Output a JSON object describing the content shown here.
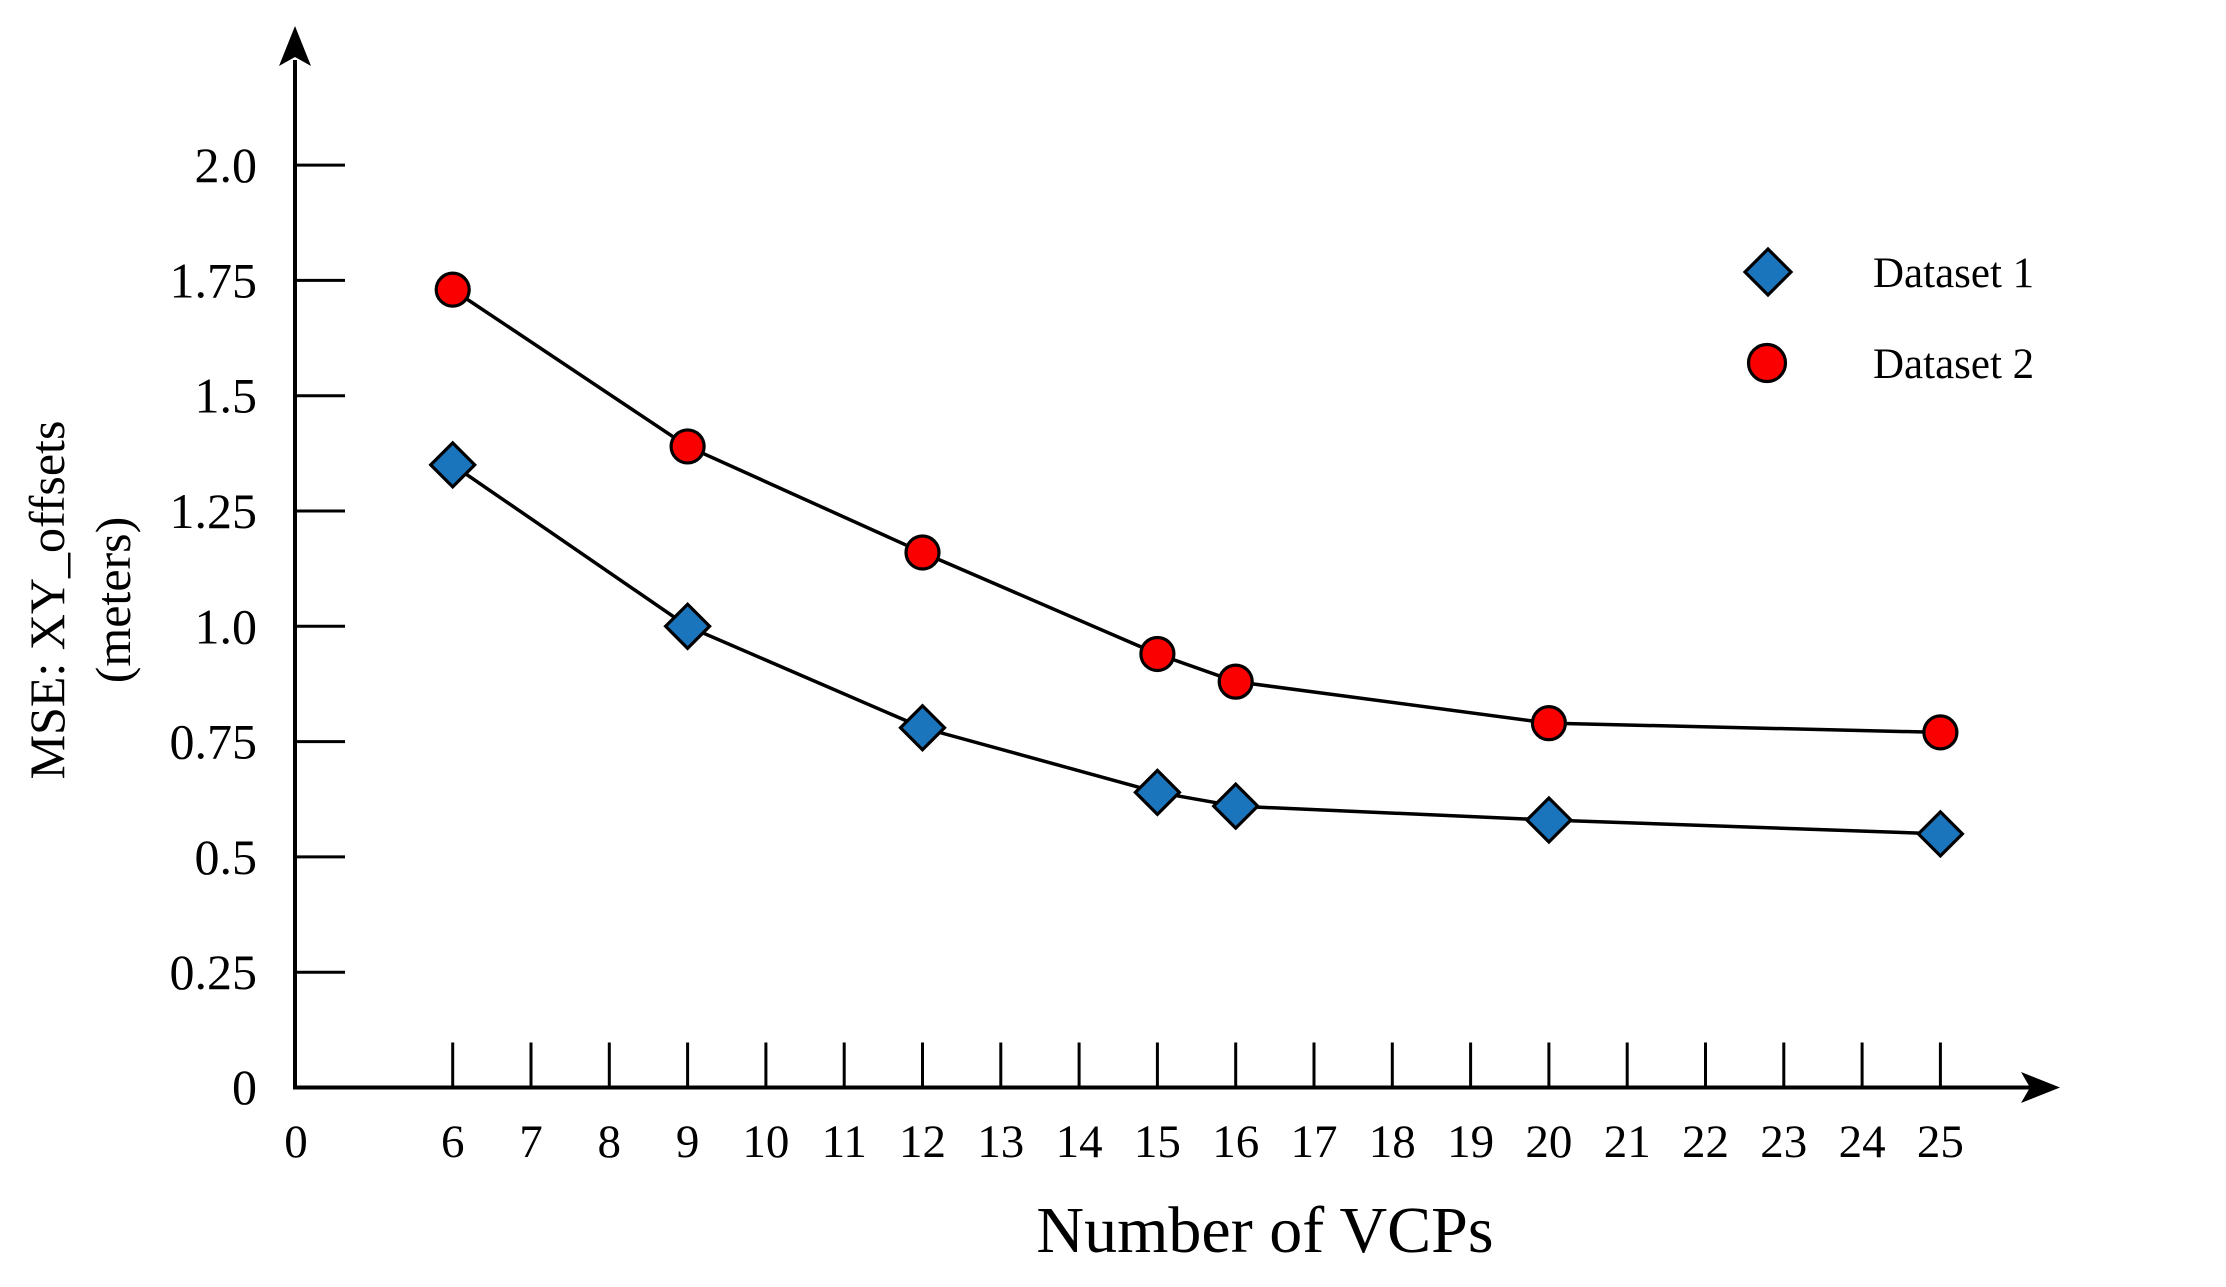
{
  "chart_data": {
    "type": "line",
    "title": "",
    "xlabel": "Number of VCPs",
    "ylabel_line1": "MSE: XY_offsets",
    "ylabel_line2": "(meters)",
    "x_origin_label": "0",
    "y_origin_label": "0",
    "x": [
      6,
      9,
      12,
      15,
      16,
      20,
      25
    ],
    "series": [
      {
        "name": "Dataset 1",
        "marker": "diamond",
        "color": "#1B75BC",
        "line_color": "#000000",
        "values": [
          1.35,
          1.0,
          0.78,
          0.64,
          0.61,
          0.58,
          0.55
        ]
      },
      {
        "name": "Dataset 2",
        "marker": "circle",
        "color": "#FB0000",
        "line_color": "#000000",
        "values": [
          1.73,
          1.39,
          1.16,
          0.94,
          0.88,
          0.79,
          0.77
        ]
      }
    ],
    "x_ticks": [
      6,
      7,
      8,
      9,
      10,
      11,
      12,
      13,
      14,
      15,
      16,
      17,
      18,
      19,
      20,
      21,
      22,
      23,
      24,
      25
    ],
    "y_ticks": [
      {
        "value": 0.25,
        "label": "0.25"
      },
      {
        "value": 0.5,
        "label": "0.5"
      },
      {
        "value": 0.75,
        "label": "0.75"
      },
      {
        "value": 1.0,
        "label": "1.0"
      },
      {
        "value": 1.25,
        "label": "1.25"
      },
      {
        "value": 1.5,
        "label": "1.5"
      },
      {
        "value": 1.75,
        "label": "1.75"
      },
      {
        "value": 2.0,
        "label": "2.0"
      }
    ],
    "xlim": [
      0,
      27
    ],
    "ylim": [
      0,
      2.2
    ],
    "grid": false,
    "legend_position": "upper-right",
    "axis_color": "#000000"
  }
}
